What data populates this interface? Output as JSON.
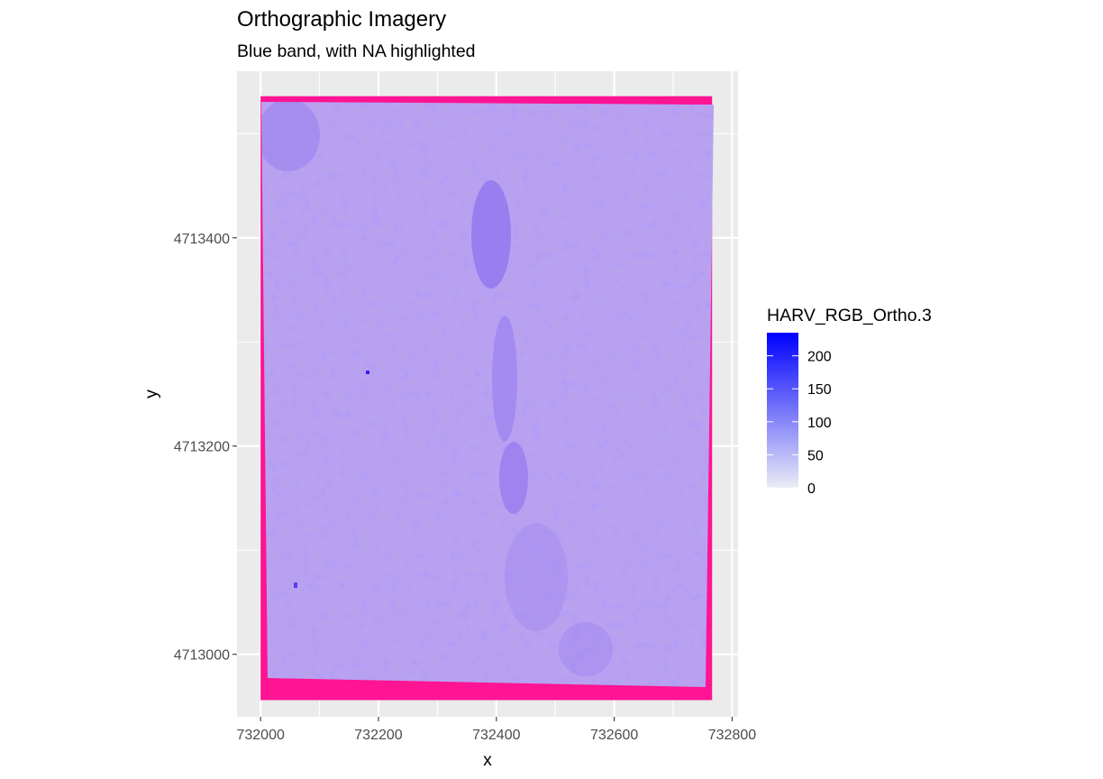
{
  "chart_data": {
    "type": "heatmap",
    "title": "Orthographic Imagery",
    "subtitle": "Blue band, with NA highlighted",
    "xlabel": "x",
    "ylabel": "y",
    "x_ticks": [
      732000,
      732200,
      732400,
      732600,
      732800
    ],
    "x_tick_labels": [
      "732000",
      "732200",
      "732400",
      "732600",
      "732800"
    ],
    "y_ticks": [
      4713000,
      4713200,
      4713400
    ],
    "y_tick_labels": [
      "4713000",
      "4713200",
      "4713400"
    ],
    "xlim": [
      731960,
      732810
    ],
    "ylim": [
      4712940,
      4713560
    ],
    "raster_extent": {
      "x": [
        732000,
        732766
      ],
      "y": [
        4712956,
        4713536
      ]
    },
    "value_range": [
      0,
      235
    ],
    "background_value_approx": 85,
    "na_color": "#ff1493",
    "legend": {
      "title": "HARV_RGB_Ortho.3",
      "breaks": [
        0,
        50,
        100,
        150,
        200
      ],
      "labels": [
        "0",
        "50",
        "100",
        "150",
        "200"
      ],
      "low_color": "#ececf5",
      "high_color": "#0000ff",
      "position": "right"
    },
    "panel_background": "#ebebeb",
    "grid": true
  }
}
